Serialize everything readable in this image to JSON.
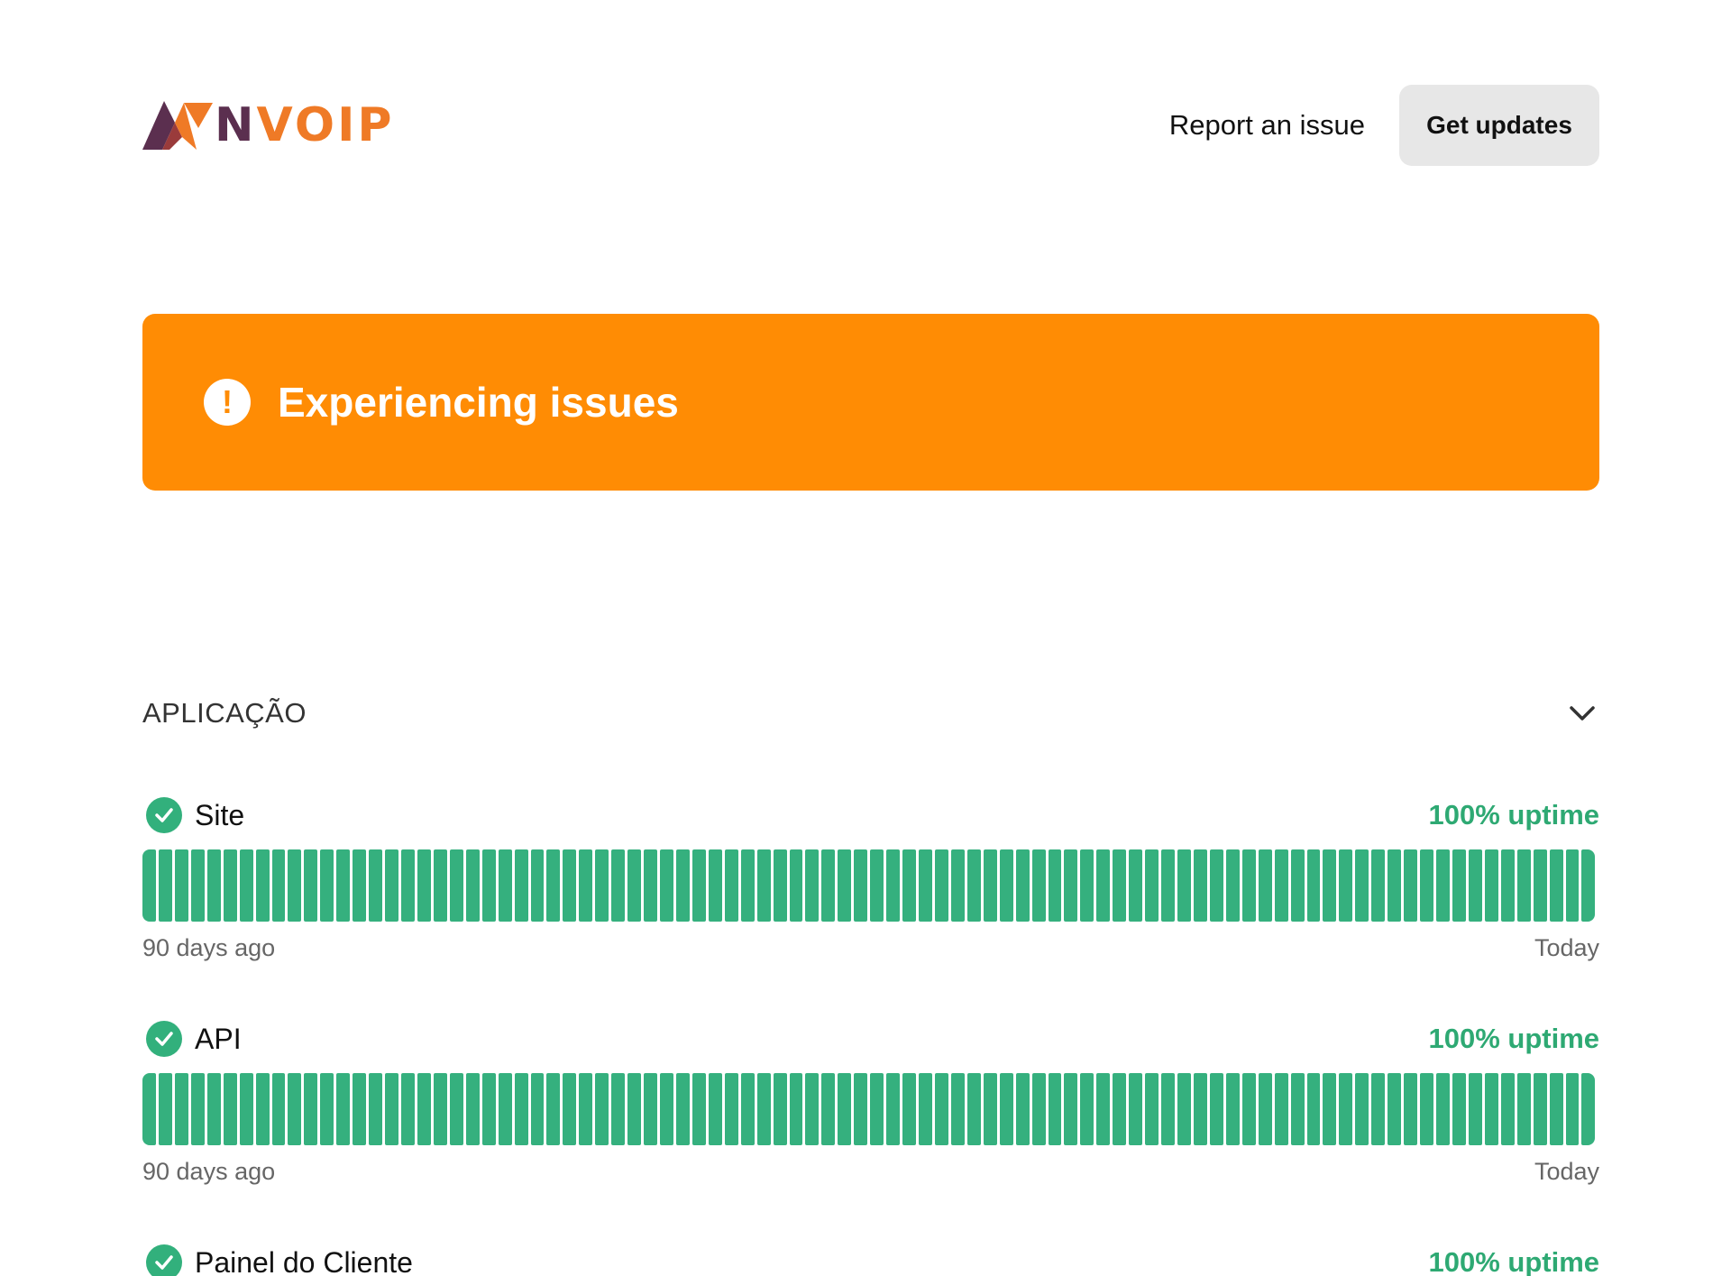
{
  "header": {
    "logo_text": "NVOIP",
    "report_label": "Report an issue",
    "updates_label": "Get updates"
  },
  "banner": {
    "icon": "exclamation-icon",
    "text": "Experiencing issues",
    "color": "#ff8c04"
  },
  "group": {
    "title": "APLICAÇÃO",
    "icon": "chevron-down-icon"
  },
  "components": [
    {
      "name": "Site",
      "uptime": "100% uptime",
      "start_label": "90 days ago",
      "end_label": "Today",
      "days": 90,
      "status": "operational"
    },
    {
      "name": "API",
      "uptime": "100% uptime",
      "start_label": "90 days ago",
      "end_label": "Today",
      "days": 90,
      "status": "operational"
    },
    {
      "name": "Painel do Cliente",
      "uptime": "100% uptime",
      "status": "operational"
    }
  ],
  "colors": {
    "operational": "#35b07e",
    "uptime_text": "#2ea973",
    "logo_orange": "#ef7a26",
    "logo_purple": "#5b2f4f"
  }
}
